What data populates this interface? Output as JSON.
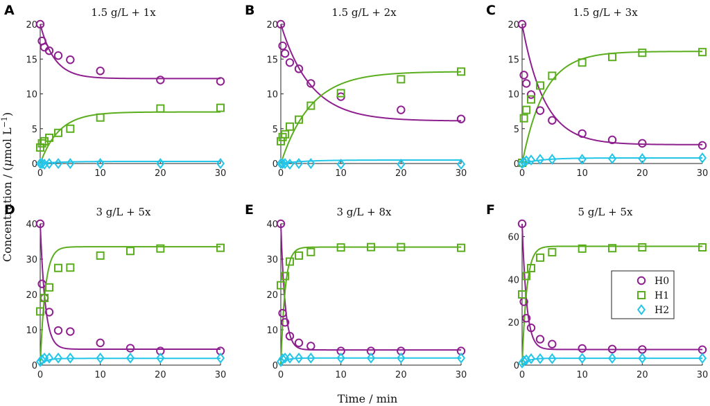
{
  "colors": {
    "H0": "#8e1f8f",
    "H1": "#5aad1c",
    "H2": "#22c5e8",
    "axis": "#222222"
  },
  "chart_data": {
    "type": "scatter",
    "xlabel": "Time / min",
    "ylabel": "Concentration / (μmol L⁻¹)",
    "ylabel_parts": {
      "main": "Concentration / (",
      "mu": "μ",
      "unit": "mol L",
      "exp": "−1",
      "close": ")"
    },
    "legend": {
      "position": "bottom-right of panel F",
      "entries": [
        "H0",
        "H1",
        "H2"
      ]
    },
    "panels": [
      {
        "id": "A",
        "title": "1.5 g/L + 1x",
        "xlim": [
          0,
          30
        ],
        "ylim": [
          0,
          20
        ],
        "xticks": [
          0,
          10,
          20,
          30
        ],
        "yticks": [
          0,
          5,
          10,
          15,
          20
        ],
        "series": [
          {
            "name": "H0",
            "marker": "circle",
            "points": [
              [
                0,
                20
              ],
              [
                0.3,
                17.6
              ],
              [
                0.7,
                16.7
              ],
              [
                1.5,
                16.2
              ],
              [
                3,
                15.5
              ],
              [
                5,
                14.9
              ],
              [
                10,
                13.3
              ],
              [
                20,
                12
              ],
              [
                30,
                11.8
              ]
            ],
            "fit": {
              "y0": 20,
              "yinf": 12.2,
              "k": 0.42
            }
          },
          {
            "name": "H1",
            "marker": "square",
            "points": [
              [
                0,
                2.3
              ],
              [
                0.3,
                2.9
              ],
              [
                0.7,
                3.2
              ],
              [
                1.5,
                3.7
              ],
              [
                3,
                4.4
              ],
              [
                5,
                5
              ],
              [
                10,
                6.6
              ],
              [
                20,
                7.9
              ],
              [
                30,
                8
              ]
            ],
            "fit": {
              "y0": 0,
              "yinf": 7.4,
              "k": 0.32
            }
          },
          {
            "name": "H2",
            "marker": "diamond",
            "points": [
              [
                0,
                0
              ],
              [
                0.3,
                0
              ],
              [
                0.7,
                -0.1
              ],
              [
                1.5,
                0
              ],
              [
                3,
                0
              ],
              [
                5,
                0
              ],
              [
                10,
                0
              ],
              [
                20,
                0
              ],
              [
                30,
                0
              ]
            ],
            "fit": {
              "y0": 0,
              "yinf": 0.3,
              "k": 0.3
            }
          }
        ]
      },
      {
        "id": "B",
        "title": "1.5 g/L + 2x",
        "xlim": [
          0,
          30
        ],
        "ylim": [
          0,
          20
        ],
        "xticks": [
          0,
          10,
          20,
          30
        ],
        "yticks": [
          0,
          5,
          10,
          15,
          20
        ],
        "series": [
          {
            "name": "H0",
            "marker": "circle",
            "points": [
              [
                0,
                20
              ],
              [
                0.3,
                16.9
              ],
              [
                0.7,
                15.8
              ],
              [
                1.5,
                14.5
              ],
              [
                3,
                13.6
              ],
              [
                5,
                11.5
              ],
              [
                10,
                9.6
              ],
              [
                20,
                7.7
              ],
              [
                30,
                6.4
              ]
            ],
            "fit": {
              "y0": 20,
              "yinf": 6.1,
              "k": 0.2
            }
          },
          {
            "name": "H1",
            "marker": "square",
            "points": [
              [
                0,
                3.2
              ],
              [
                0.3,
                3.8
              ],
              [
                0.7,
                4.2
              ],
              [
                1.5,
                5.3
              ],
              [
                3,
                6.3
              ],
              [
                5,
                8.3
              ],
              [
                10,
                10.1
              ],
              [
                20,
                12.1
              ],
              [
                30,
                13.2
              ]
            ],
            "fit": {
              "y0": 0,
              "yinf": 13.2,
              "k": 0.2
            }
          },
          {
            "name": "H2",
            "marker": "diamond",
            "points": [
              [
                0,
                0
              ],
              [
                0.3,
                0
              ],
              [
                0.7,
                0
              ],
              [
                1.5,
                -0.1
              ],
              [
                3,
                0
              ],
              [
                5,
                0
              ],
              [
                10,
                -0.1
              ],
              [
                20,
                -0.1
              ],
              [
                30,
                -0.1
              ]
            ],
            "fit": {
              "y0": 0,
              "yinf": 0.5,
              "k": 0.25
            }
          }
        ]
      },
      {
        "id": "C",
        "title": "1.5 g/L + 3x",
        "xlim": [
          0,
          30
        ],
        "ylim": [
          0,
          20
        ],
        "xticks": [
          0,
          10,
          20,
          30
        ],
        "yticks": [
          0,
          5,
          10,
          15,
          20
        ],
        "series": [
          {
            "name": "H0",
            "marker": "circle",
            "points": [
              [
                0,
                20
              ],
              [
                0.3,
                12.7
              ],
              [
                0.7,
                11.5
              ],
              [
                1.5,
                9.9
              ],
              [
                3,
                7.6
              ],
              [
                5,
                6.2
              ],
              [
                10,
                4.3
              ],
              [
                15,
                3.4
              ],
              [
                20,
                2.9
              ],
              [
                30,
                2.6
              ]
            ],
            "fit": {
              "y0": 20,
              "yinf": 2.7,
              "k": 0.27
            }
          },
          {
            "name": "H1",
            "marker": "square",
            "points": [
              [
                0,
                0.1
              ],
              [
                0.3,
                6.5
              ],
              [
                0.7,
                7.7
              ],
              [
                1.5,
                9.2
              ],
              [
                3,
                11.2
              ],
              [
                5,
                12.6
              ],
              [
                10,
                14.5
              ],
              [
                15,
                15.3
              ],
              [
                20,
                15.9
              ],
              [
                30,
                16
              ]
            ],
            "fit": {
              "y0": 0,
              "yinf": 16.1,
              "k": 0.27
            }
          },
          {
            "name": "H2",
            "marker": "diamond",
            "points": [
              [
                0,
                0
              ],
              [
                0.3,
                0.2
              ],
              [
                0.7,
                0.4
              ],
              [
                1.5,
                0.5
              ],
              [
                3,
                0.6
              ],
              [
                5,
                0.6
              ],
              [
                10,
                0.6
              ],
              [
                15,
                0.7
              ],
              [
                20,
                0.7
              ],
              [
                30,
                0.8
              ]
            ],
            "fit": {
              "y0": 0,
              "yinf": 0.8,
              "k": 0.3
            }
          }
        ]
      },
      {
        "id": "D",
        "title": "3 g/L + 5x",
        "xlim": [
          0,
          30
        ],
        "ylim": [
          0,
          40
        ],
        "xticks": [
          0,
          10,
          20,
          30
        ],
        "yticks": [
          0,
          10,
          20,
          30,
          40
        ],
        "series": [
          {
            "name": "H0",
            "marker": "circle",
            "points": [
              [
                0,
                40
              ],
              [
                0.3,
                23
              ],
              [
                0.7,
                19
              ],
              [
                1.5,
                15
              ],
              [
                3,
                9.8
              ],
              [
                5,
                9.5
              ],
              [
                10,
                6.3
              ],
              [
                15,
                4.8
              ],
              [
                20,
                4
              ],
              [
                30,
                4
              ]
            ],
            "fit": {
              "y0": 40,
              "yinf": 4.5,
              "k": 1.2
            }
          },
          {
            "name": "H1",
            "marker": "square",
            "points": [
              [
                0,
                15.2
              ],
              [
                0.7,
                19
              ],
              [
                1.5,
                22
              ],
              [
                3,
                27.5
              ],
              [
                5,
                27.6
              ],
              [
                10,
                31
              ],
              [
                15,
                32.3
              ],
              [
                20,
                33
              ],
              [
                30,
                33.2
              ]
            ],
            "fit": {
              "y0": 0,
              "yinf": 33.5,
              "k": 1.2
            }
          },
          {
            "name": "H2",
            "marker": "diamond",
            "points": [
              [
                0,
                1
              ],
              [
                0.3,
                1.5
              ],
              [
                0.7,
                2
              ],
              [
                1.5,
                2
              ],
              [
                3,
                2
              ],
              [
                5,
                2
              ],
              [
                10,
                2
              ],
              [
                15,
                2
              ],
              [
                20,
                2
              ],
              [
                30,
                2
              ]
            ],
            "fit": {
              "y0": 0,
              "yinf": 1.9,
              "k": 1
            }
          }
        ]
      },
      {
        "id": "E",
        "title": "3 g/L + 8x",
        "xlim": [
          0,
          30
        ],
        "ylim": [
          0,
          40
        ],
        "xticks": [
          0,
          10,
          20,
          30
        ],
        "yticks": [
          0,
          10,
          20,
          30,
          40
        ],
        "series": [
          {
            "name": "H0",
            "marker": "circle",
            "points": [
              [
                0,
                40
              ],
              [
                0.3,
                14.7
              ],
              [
                0.7,
                12.1
              ],
              [
                1.5,
                8.2
              ],
              [
                3,
                6.3
              ],
              [
                5,
                5.4
              ],
              [
                10,
                4
              ],
              [
                15,
                4
              ],
              [
                20,
                4
              ],
              [
                30,
                4
              ]
            ],
            "fit": {
              "y0": 40,
              "yinf": 4.3,
              "k": 1.4
            }
          },
          {
            "name": "H1",
            "marker": "square",
            "points": [
              [
                0,
                22.6
              ],
              [
                0.7,
                25.2
              ],
              [
                1.5,
                29.3
              ],
              [
                3,
                31
              ],
              [
                5,
                32
              ],
              [
                10,
                33.3
              ],
              [
                15,
                33.4
              ],
              [
                20,
                33.4
              ],
              [
                30,
                33.2
              ]
            ],
            "fit": {
              "y0": 0,
              "yinf": 33.4,
              "k": 1.4
            }
          },
          {
            "name": "H2",
            "marker": "diamond",
            "points": [
              [
                0,
                1
              ],
              [
                0.3,
                1.8
              ],
              [
                0.7,
                2
              ],
              [
                1.5,
                2
              ],
              [
                3,
                2
              ],
              [
                5,
                2
              ],
              [
                10,
                2
              ],
              [
                15,
                2
              ],
              [
                20,
                2
              ],
              [
                30,
                2
              ]
            ],
            "fit": {
              "y0": 0,
              "yinf": 2,
              "k": 1.2
            }
          }
        ]
      },
      {
        "id": "F",
        "title": "5 g/L + 5x",
        "xlim": [
          0,
          30
        ],
        "ylim": [
          0,
          66
        ],
        "xticks": [
          0,
          10,
          20,
          30
        ],
        "yticks": [
          0,
          20,
          40,
          60
        ],
        "series": [
          {
            "name": "H0",
            "marker": "circle",
            "points": [
              [
                0,
                66
              ],
              [
                0.3,
                29.6
              ],
              [
                0.7,
                21.9
              ],
              [
                1.5,
                17.4
              ],
              [
                3,
                12.1
              ],
              [
                5,
                9.8
              ],
              [
                10,
                7.8
              ],
              [
                15,
                7.5
              ],
              [
                20,
                7.3
              ],
              [
                30,
                7.2
              ]
            ],
            "fit": {
              "y0": 66,
              "yinf": 7.3,
              "k": 1.3
            }
          },
          {
            "name": "H1",
            "marker": "square",
            "points": [
              [
                0,
                33
              ],
              [
                0.7,
                41.6
              ],
              [
                1.5,
                45.3
              ],
              [
                3,
                50.2
              ],
              [
                5,
                52.7
              ],
              [
                10,
                54.4
              ],
              [
                15,
                54.6
              ],
              [
                20,
                55
              ],
              [
                30,
                55
              ]
            ],
            "fit": {
              "y0": 0,
              "yinf": 55.5,
              "k": 1.3
            }
          },
          {
            "name": "H2",
            "marker": "diamond",
            "points": [
              [
                0,
                1
              ],
              [
                0.3,
                2
              ],
              [
                0.7,
                2.5
              ],
              [
                1.5,
                3
              ],
              [
                3,
                3
              ],
              [
                5,
                3
              ],
              [
                10,
                3.2
              ],
              [
                15,
                3.2
              ],
              [
                20,
                3.2
              ],
              [
                30,
                3.2
              ]
            ],
            "fit": {
              "y0": 0,
              "yinf": 3.2,
              "k": 1
            }
          }
        ]
      }
    ]
  }
}
